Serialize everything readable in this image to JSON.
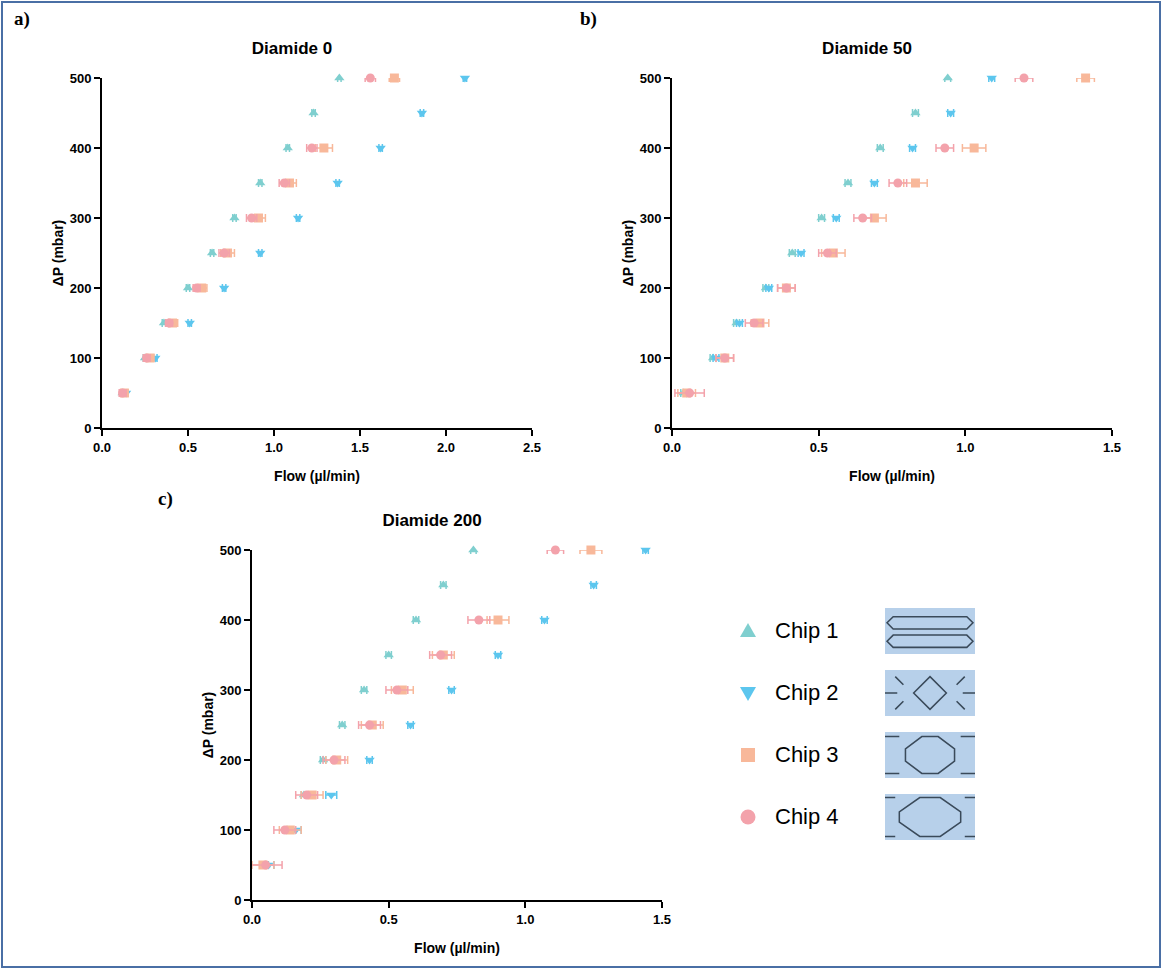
{
  "chart_data": [
    {
      "type": "scatter",
      "panel_label": "a)",
      "title": "Diamide 0",
      "x_label": "Flow (µl/min)",
      "y_label": "ΔP (mbar)",
      "xlim": [
        0,
        2.5
      ],
      "xticks": [
        {
          "value": 0,
          "label": "0.0"
        },
        0.5,
        {
          "value": 1,
          "label": "1.0"
        },
        1.5,
        {
          "value": 2,
          "label": "2.0"
        },
        2.5
      ],
      "ylim": [
        0,
        500
      ],
      "yticks": [
        0,
        100,
        200,
        300,
        400,
        500
      ],
      "grid": false,
      "series": [
        {
          "name": "Chip 1",
          "color": "#7fcfcf",
          "marker": "triangle-up",
          "x": [
            0.12,
            0.25,
            0.36,
            0.5,
            0.64,
            0.77,
            0.92,
            1.08,
            1.23,
            1.38
          ],
          "values": [
            50,
            100,
            150,
            200,
            250,
            300,
            350,
            400,
            450,
            500
          ],
          "x_error": [
            0.01,
            0.01,
            0.01,
            0.01,
            0.01,
            0.01,
            0.01,
            0.01,
            0.01,
            0.01
          ]
        },
        {
          "name": "Chip 2",
          "color": "#5cc6ee",
          "marker": "triangle-down",
          "x": [
            0.14,
            0.31,
            0.51,
            0.71,
            0.92,
            1.14,
            1.37,
            1.62,
            1.86,
            2.11
          ],
          "values": [
            50,
            100,
            150,
            200,
            250,
            300,
            350,
            400,
            450,
            500
          ],
          "x_error": [
            0.01,
            0.01,
            0.01,
            0.01,
            0.01,
            0.01,
            0.01,
            0.01,
            0.01,
            0.01
          ]
        },
        {
          "name": "Chip 3",
          "color": "#f8b89a",
          "marker": "square",
          "x": [
            0.13,
            0.28,
            0.41,
            0.58,
            0.73,
            0.91,
            1.09,
            1.29,
            null,
            1.7
          ],
          "values": [
            50,
            100,
            150,
            200,
            250,
            300,
            350,
            400,
            450,
            500
          ],
          "x_error": [
            0.02,
            0.02,
            0.03,
            0.03,
            0.04,
            0.04,
            0.04,
            0.05,
            null,
            0.03
          ]
        },
        {
          "name": "Chip 4",
          "color": "#f3a2ab",
          "marker": "circle",
          "x": [
            0.12,
            0.26,
            0.39,
            0.55,
            0.71,
            0.87,
            1.06,
            1.22,
            null,
            1.56
          ],
          "values": [
            50,
            100,
            150,
            200,
            250,
            300,
            350,
            400,
            450,
            500
          ],
          "x_error": [
            0.02,
            0.02,
            0.02,
            0.02,
            0.03,
            0.03,
            0.03,
            0.03,
            null,
            0.03
          ]
        }
      ]
    },
    {
      "type": "scatter",
      "panel_label": "b)",
      "title": "Diamide 50",
      "x_label": "Flow (µl/min)",
      "y_label": "ΔP (mbar)",
      "xlim": [
        0,
        1.5
      ],
      "xticks": [
        {
          "value": 0,
          "label": "0.0"
        },
        0.5,
        {
          "value": 1,
          "label": "1.0"
        },
        1.5
      ],
      "ylim": [
        0,
        500
      ],
      "yticks": [
        0,
        100,
        200,
        300,
        400,
        500
      ],
      "grid": false,
      "series": [
        {
          "name": "Chip 1",
          "color": "#7fcfcf",
          "marker": "triangle-up",
          "x": [
            0.04,
            0.14,
            0.22,
            0.32,
            0.41,
            0.51,
            0.6,
            0.71,
            0.83,
            0.94
          ],
          "values": [
            50,
            100,
            150,
            200,
            250,
            300,
            350,
            400,
            450,
            500
          ],
          "x_error": [
            0.01,
            0.01,
            0.01,
            0.01,
            0.01,
            0.01,
            0.01,
            0.01,
            0.01,
            0.01
          ]
        },
        {
          "name": "Chip 2",
          "color": "#5cc6ee",
          "marker": "triangle-down",
          "x": [
            0.05,
            0.15,
            0.23,
            0.33,
            0.44,
            0.56,
            0.69,
            0.82,
            0.95,
            1.09
          ],
          "values": [
            50,
            100,
            150,
            200,
            250,
            300,
            350,
            400,
            450,
            500
          ],
          "x_error": [
            0.01,
            0.01,
            0.01,
            0.01,
            0.01,
            0.01,
            0.01,
            0.01,
            0.01,
            0.01
          ]
        },
        {
          "name": "Chip 3",
          "color": "#f8b89a",
          "marker": "square",
          "x": [
            0.05,
            0.18,
            0.3,
            0.39,
            0.55,
            0.69,
            0.83,
            1.03,
            null,
            1.41
          ],
          "values": [
            50,
            100,
            150,
            200,
            250,
            300,
            350,
            400,
            450,
            500
          ],
          "x_error": [
            0.03,
            0.03,
            0.03,
            0.03,
            0.04,
            0.04,
            0.04,
            0.04,
            null,
            0.03
          ]
        },
        {
          "name": "Chip 4",
          "color": "#f3a2ab",
          "marker": "circle",
          "x": [
            0.06,
            0.18,
            0.28,
            0.39,
            0.53,
            0.65,
            0.77,
            0.93,
            null,
            1.2
          ],
          "values": [
            50,
            100,
            150,
            200,
            250,
            300,
            350,
            400,
            450,
            500
          ],
          "x_error": [
            0.05,
            0.03,
            0.03,
            0.03,
            0.03,
            0.03,
            0.03,
            0.03,
            null,
            0.03
          ]
        }
      ]
    },
    {
      "type": "scatter",
      "panel_label": "c)",
      "title": "Diamide 200",
      "x_label": "Flow (µl/min)",
      "y_label": "ΔP (mbar)",
      "xlim": [
        0,
        1.5
      ],
      "xticks": [
        {
          "value": 0,
          "label": "0.0"
        },
        0.5,
        {
          "value": 1,
          "label": "1.0"
        },
        1.5
      ],
      "ylim": [
        0,
        500
      ],
      "yticks": [
        0,
        100,
        200,
        300,
        400,
        500
      ],
      "grid": false,
      "legend": "right",
      "series": [
        {
          "name": "Chip 1",
          "color": "#7fcfcf",
          "marker": "triangle-up",
          "x": [
            0.05,
            0.13,
            0.19,
            0.26,
            0.33,
            0.41,
            0.5,
            0.6,
            0.7,
            0.81
          ],
          "values": [
            50,
            100,
            150,
            200,
            250,
            300,
            350,
            400,
            450,
            500
          ],
          "x_error": [
            0.01,
            0.01,
            0.01,
            0.01,
            0.01,
            0.01,
            0.01,
            0.01,
            0.01,
            0.01
          ]
        },
        {
          "name": "Chip 2",
          "color": "#5cc6ee",
          "marker": "triangle-down",
          "x": [
            0.06,
            0.16,
            0.29,
            0.43,
            0.58,
            0.73,
            0.9,
            1.07,
            1.25,
            1.44
          ],
          "values": [
            50,
            100,
            150,
            200,
            250,
            300,
            350,
            400,
            450,
            500
          ],
          "x_error": [
            0.02,
            0.02,
            0.02,
            0.01,
            0.01,
            0.01,
            0.01,
            0.01,
            0.01,
            0.01
          ]
        },
        {
          "name": "Chip 3",
          "color": "#f8b89a",
          "marker": "square",
          "x": [
            0.04,
            0.14,
            0.22,
            0.31,
            0.44,
            0.55,
            0.7,
            0.9,
            null,
            1.24
          ],
          "values": [
            50,
            100,
            150,
            200,
            250,
            300,
            350,
            400,
            450,
            500
          ],
          "x_error": [
            0.04,
            0.04,
            0.04,
            0.04,
            0.04,
            0.04,
            0.04,
            0.04,
            null,
            0.04
          ]
        },
        {
          "name": "Chip 4",
          "color": "#f3a2ab",
          "marker": "circle",
          "x": [
            0.05,
            0.12,
            0.2,
            0.3,
            0.43,
            0.53,
            0.69,
            0.83,
            null,
            1.11
          ],
          "values": [
            50,
            100,
            150,
            200,
            250,
            300,
            350,
            400,
            450,
            500
          ],
          "x_error": [
            0.06,
            0.04,
            0.04,
            0.04,
            0.04,
            0.04,
            0.04,
            0.04,
            null,
            0.03
          ]
        }
      ]
    }
  ]
}
